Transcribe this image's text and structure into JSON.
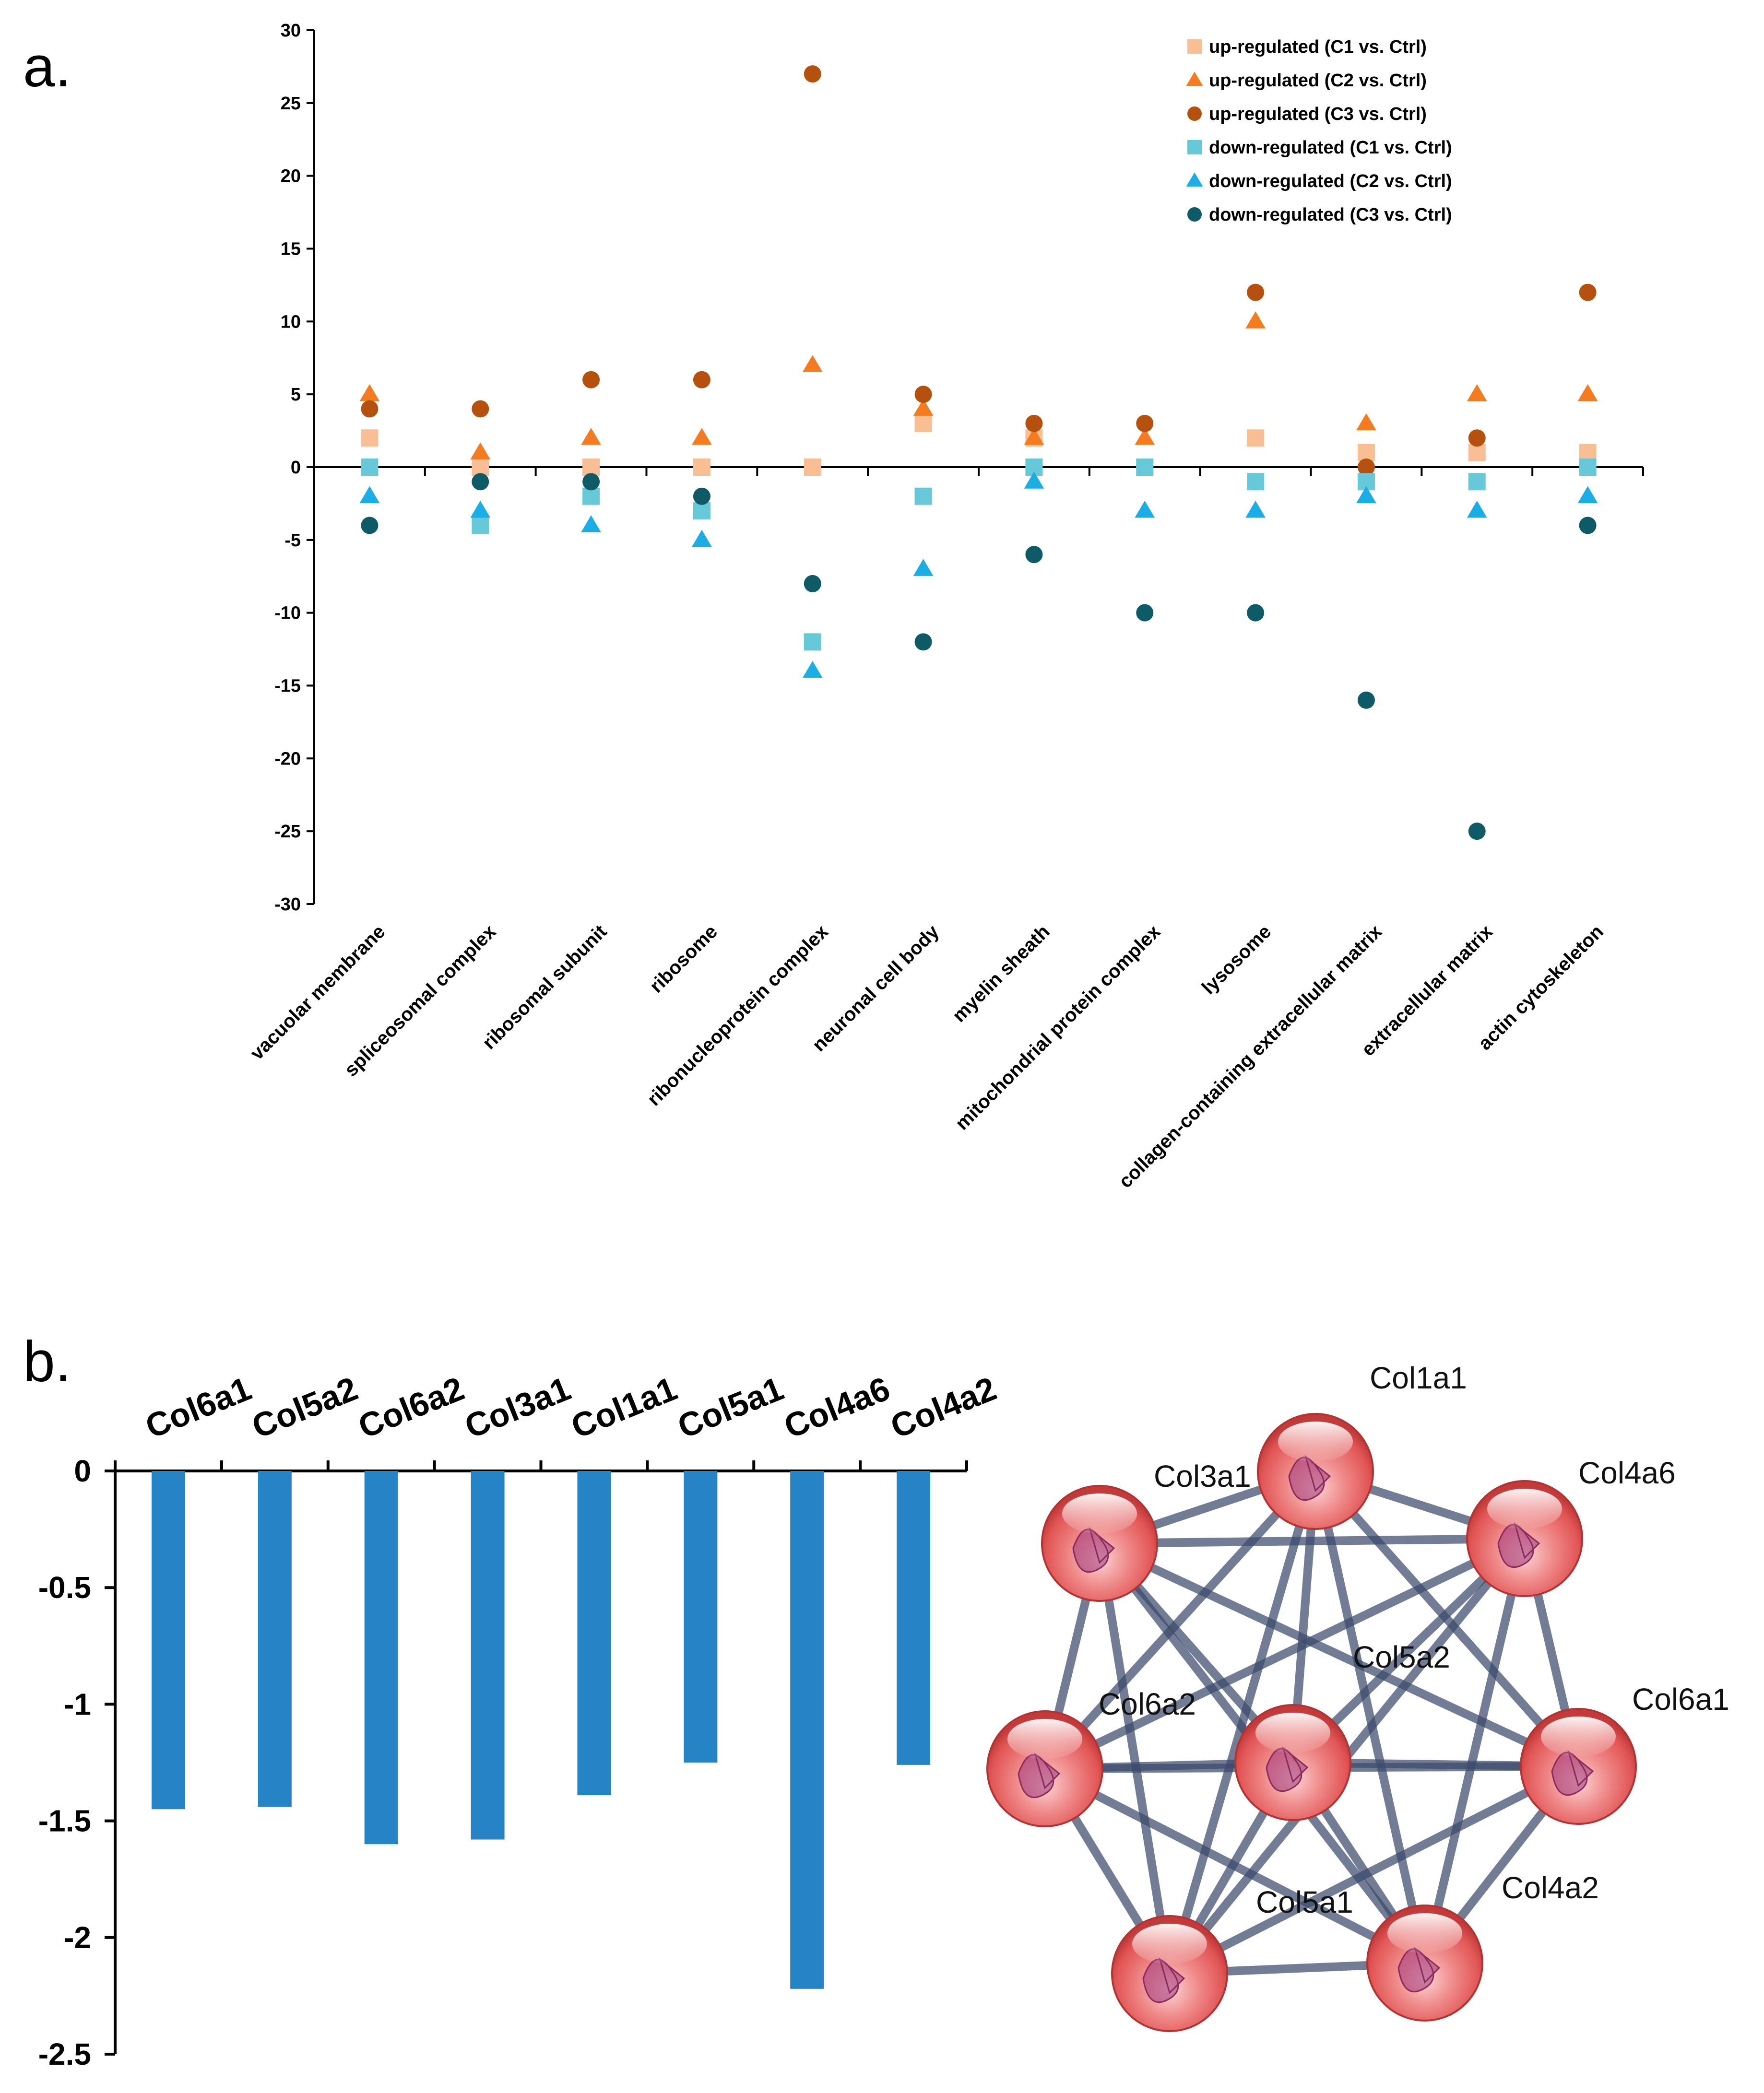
{
  "panels": {
    "a": "a.",
    "b": "b."
  },
  "chart_data": [
    {
      "type": "scatter",
      "title": "",
      "xlabel": "",
      "ylabel": "",
      "ylim": [
        -30,
        30
      ],
      "yticks": [
        30,
        25,
        20,
        15,
        10,
        5,
        0,
        -5,
        -10,
        -15,
        -20,
        -25,
        -30
      ],
      "categories": [
        "vacuolar membrane",
        "spliceosomal complex",
        "ribosomal subunit",
        "ribosome",
        "ribonucleoprotein complex",
        "neuronal cell body",
        "myelin sheath",
        "mitochondrial protein complex",
        "lysosome",
        "collagen-containing extracellular matrix",
        "extracellular matrix",
        "actin cytoskeleton"
      ],
      "legend_position": "top-right",
      "series": [
        {
          "name": "up-regulated (C1 vs. Ctrl)",
          "marker": "square",
          "color": "#F9BE94",
          "values": [
            2,
            0,
            0,
            0,
            0,
            3,
            2,
            0,
            2,
            1,
            1,
            1
          ]
        },
        {
          "name": "up-regulated (C2 vs. Ctrl)",
          "marker": "triangle",
          "color": "#F47B20",
          "values": [
            5,
            1,
            2,
            2,
            7,
            4,
            2,
            2,
            10,
            3,
            5,
            5
          ]
        },
        {
          "name": "up-regulated (C3 vs. Ctrl)",
          "marker": "circle",
          "color": "#B5500F",
          "values": [
            4,
            4,
            6,
            6,
            27,
            5,
            3,
            3,
            12,
            0,
            2,
            12
          ]
        },
        {
          "name": "down-regulated (C1 vs. Ctrl)",
          "marker": "square",
          "color": "#66C8D8",
          "values": [
            0,
            -4,
            -2,
            -3,
            -12,
            -2,
            0,
            0,
            -1,
            -1,
            -1,
            0
          ]
        },
        {
          "name": "down-regulated (C2 vs. Ctrl)",
          "marker": "triangle",
          "color": "#1BAEE6",
          "values": [
            -2,
            -3,
            -4,
            -5,
            -14,
            -7,
            -1,
            -3,
            -3,
            -2,
            -3,
            -2
          ]
        },
        {
          "name": "down-regulated (C3 vs. Ctrl)",
          "marker": "circle",
          "color": "#0E5A66",
          "values": [
            -4,
            -1,
            -1,
            -2,
            -8,
            -12,
            -6,
            -10,
            -10,
            -16,
            -25,
            -4
          ]
        }
      ]
    },
    {
      "type": "bar",
      "title": "",
      "xlabel": "",
      "ylabel": "",
      "ylim": [
        -2.5,
        0
      ],
      "yticks": [
        0,
        -0.5,
        -1,
        -1.5,
        -2,
        -2.5
      ],
      "ytick_labels": [
        "0",
        "-0.5",
        "-1",
        "-1.5",
        "-2",
        "-2.5"
      ],
      "bar_color": "#2683C6",
      "categories": [
        "Col6a1",
        "Col5a2",
        "Col6a2",
        "Col3a1",
        "Col1a1",
        "Col5a1",
        "Col4a6",
        "Col4a2"
      ],
      "values": [
        -1.45,
        -1.44,
        -1.6,
        -1.58,
        -1.39,
        -1.25,
        -2.22,
        -1.26
      ]
    }
  ],
  "network": {
    "node_color": "#E85A5A",
    "edge_color": "#3B4A6B",
    "nodes": [
      "Col1a1",
      "Col3a1",
      "Col4a6",
      "Col5a2",
      "Col6a2",
      "Col6a1",
      "Col5a1",
      "Col4a2"
    ],
    "edges": [
      [
        "Col1a1",
        "Col3a1"
      ],
      [
        "Col1a1",
        "Col4a6"
      ],
      [
        "Col1a1",
        "Col5a2"
      ],
      [
        "Col1a1",
        "Col6a2"
      ],
      [
        "Col1a1",
        "Col6a1"
      ],
      [
        "Col1a1",
        "Col5a1"
      ],
      [
        "Col1a1",
        "Col4a2"
      ],
      [
        "Col3a1",
        "Col4a6"
      ],
      [
        "Col3a1",
        "Col5a2"
      ],
      [
        "Col3a1",
        "Col6a2"
      ],
      [
        "Col3a1",
        "Col6a1"
      ],
      [
        "Col3a1",
        "Col5a1"
      ],
      [
        "Col3a1",
        "Col4a2"
      ],
      [
        "Col4a6",
        "Col5a2"
      ],
      [
        "Col4a6",
        "Col6a2"
      ],
      [
        "Col4a6",
        "Col6a1"
      ],
      [
        "Col4a6",
        "Col5a1"
      ],
      [
        "Col4a6",
        "Col4a2"
      ],
      [
        "Col5a2",
        "Col6a2"
      ],
      [
        "Col5a2",
        "Col6a1"
      ],
      [
        "Col5a2",
        "Col5a1"
      ],
      [
        "Col5a2",
        "Col4a2"
      ],
      [
        "Col6a2",
        "Col6a1"
      ],
      [
        "Col6a2",
        "Col5a1"
      ],
      [
        "Col6a2",
        "Col4a2"
      ],
      [
        "Col6a1",
        "Col5a1"
      ],
      [
        "Col6a1",
        "Col4a2"
      ],
      [
        "Col5a1",
        "Col4a2"
      ]
    ]
  }
}
